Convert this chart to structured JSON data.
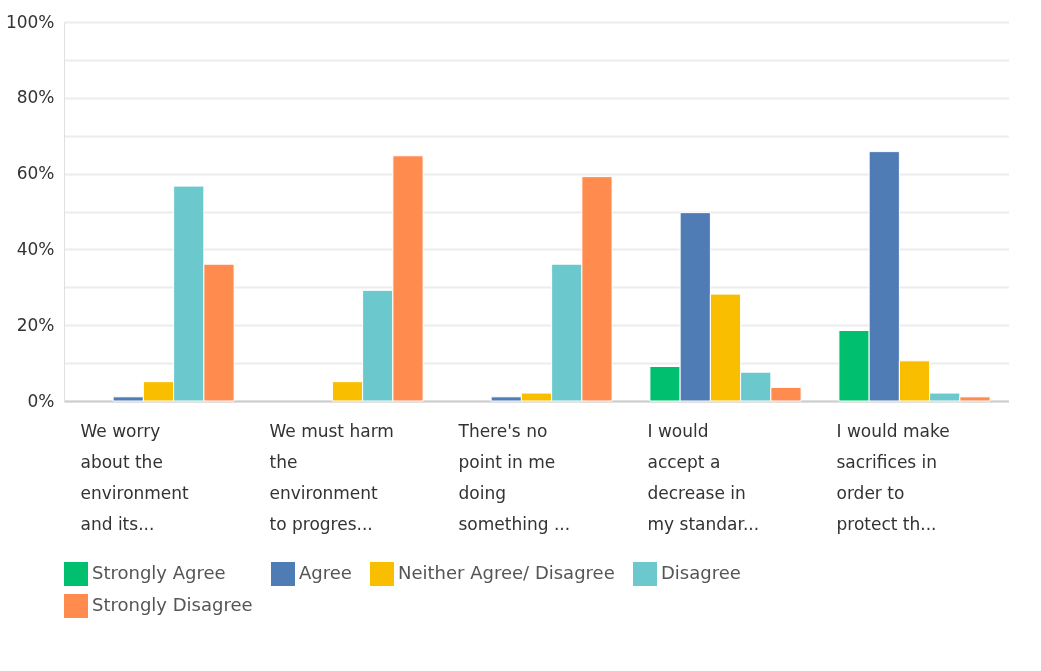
{
  "chart_data": {
    "type": "bar",
    "categories": [
      "We worry about the environment and its...",
      "We must harm the environment to progres...",
      "There's no point in me doing something ...",
      "I would accept a decrease in my standar...",
      "I would make sacrifices in order to protect th..."
    ],
    "series": [
      {
        "name": "Strongly Agree",
        "color": "#00bf6f",
        "values": [
          null,
          null,
          null,
          9.1,
          18.6
        ]
      },
      {
        "name": "Agree",
        "color": "#507cb6",
        "values": [
          1.1,
          null,
          1.1,
          49.7,
          65.8
        ]
      },
      {
        "name": "Neither Agree/ Disagree",
        "color": "#f9be00",
        "values": [
          5.1,
          5.1,
          2.1,
          28.2,
          10.6
        ]
      },
      {
        "name": "Disagree",
        "color": "#6bc8cd",
        "values": [
          56.7,
          29.2,
          36.1,
          7.6,
          2.1
        ]
      },
      {
        "name": "Strongly Disagree",
        "color": "#ff8b4f",
        "values": [
          36.1,
          64.7,
          59.2,
          3.6,
          1.1
        ]
      }
    ],
    "ylim": [
      0,
      100
    ],
    "yticks": [
      {
        "value": 0,
        "label": "0%"
      },
      {
        "value": 10,
        "label": null
      },
      {
        "value": 20,
        "label": "20%"
      },
      {
        "value": 30,
        "label": null
      },
      {
        "value": 40,
        "label": "40%"
      },
      {
        "value": 50,
        "label": null
      },
      {
        "value": 60,
        "label": "60%"
      },
      {
        "value": 70,
        "label": null
      },
      {
        "value": 80,
        "label": "80%"
      },
      {
        "value": 90,
        "label": null
      },
      {
        "value": 100,
        "label": "100%"
      }
    ],
    "grid": true,
    "legend": "bottom"
  }
}
